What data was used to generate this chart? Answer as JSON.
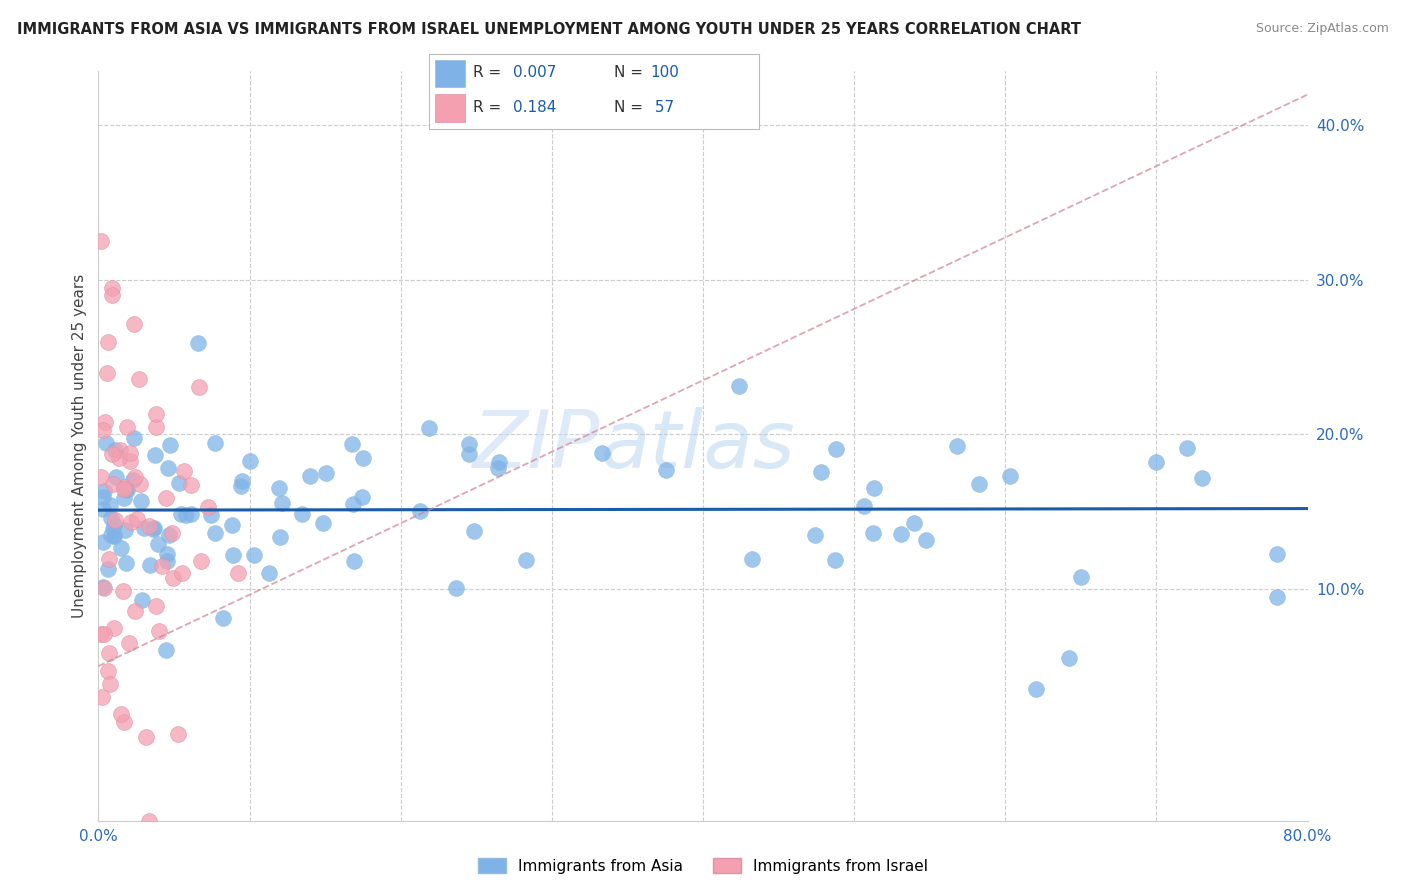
{
  "title": "IMMIGRANTS FROM ASIA VS IMMIGRANTS FROM ISRAEL UNEMPLOYMENT AMONG YOUTH UNDER 25 YEARS CORRELATION CHART",
  "source": "Source: ZipAtlas.com",
  "ylabel": "Unemployment Among Youth under 25 years",
  "xlim": [
    0,
    0.8
  ],
  "ylim": [
    -0.05,
    0.435
  ],
  "yticks_right": [
    0.1,
    0.2,
    0.3,
    0.4
  ],
  "ytick_labels_right": [
    "10.0%",
    "20.0%",
    "30.0%",
    "40.0%"
  ],
  "color_asia": "#7fb3e8",
  "color_israel": "#f4a0b0",
  "color_asia_line": "#1a5ca8",
  "color_israel_line": "#e06080",
  "watermark_zip": "ZIP",
  "watermark_atlas": "atlas",
  "background_color": "#ffffff",
  "grid_color": "#cccccc",
  "seed": 42
}
